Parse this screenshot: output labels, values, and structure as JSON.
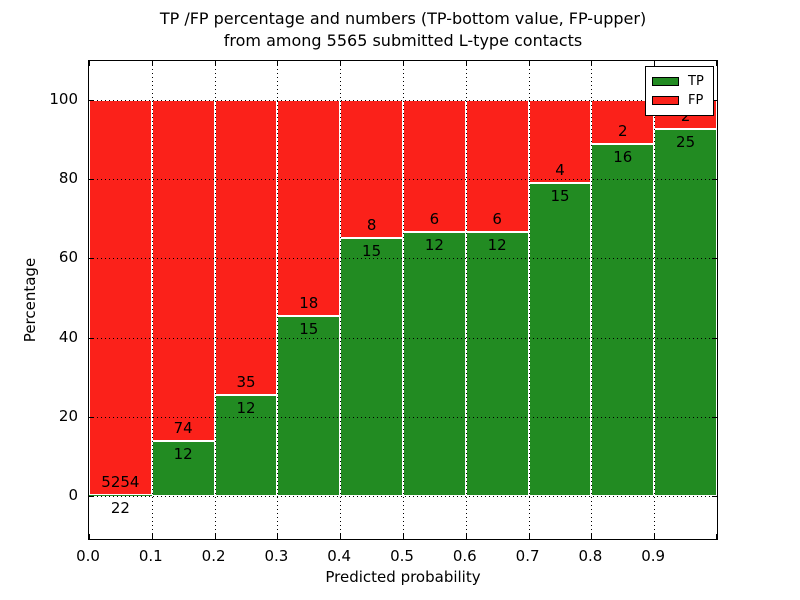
{
  "chart_data": {
    "type": "bar",
    "stacked": true,
    "title_line1": "TP /FP percentage and numbers (TP-bottom value, FP-upper)",
    "title_line2": "from among 5565 submitted L-type contacts",
    "xlabel": "Predicted probability",
    "ylabel": "Percentage",
    "total_contacts": 5565,
    "bin_edges": [
      0.0,
      0.1,
      0.2,
      0.3,
      0.4,
      0.5,
      0.6,
      0.7,
      0.8,
      0.9,
      1.0
    ],
    "series": [
      {
        "name": "TP",
        "color": "#228b22",
        "counts": [
          22,
          12,
          12,
          15,
          15,
          12,
          12,
          15,
          16,
          25
        ],
        "percent": [
          0.42,
          13.95,
          25.53,
          45.45,
          65.22,
          66.67,
          66.67,
          78.95,
          88.89,
          92.59
        ]
      },
      {
        "name": "FP",
        "color": "#fb211a",
        "counts": [
          5254,
          74,
          35,
          18,
          8,
          6,
          6,
          4,
          2,
          2
        ],
        "percent": [
          99.58,
          86.05,
          74.47,
          54.55,
          34.78,
          33.33,
          33.33,
          21.05,
          11.11,
          7.41
        ]
      }
    ],
    "x_ticks": [
      "0.0",
      "0.1",
      "0.2",
      "0.3",
      "0.4",
      "0.5",
      "0.6",
      "0.7",
      "0.8",
      "0.9"
    ],
    "y_ticks": [
      "0",
      "20",
      "40",
      "60",
      "80",
      "100"
    ],
    "y_tick_values": [
      0,
      20,
      40,
      60,
      80,
      100
    ],
    "xlim": [
      0.0,
      1.0
    ],
    "ylim": [
      -10.8,
      109.8
    ],
    "grid": "dotted",
    "legend_position": "upper right",
    "legend": [
      "TP",
      "FP"
    ]
  }
}
